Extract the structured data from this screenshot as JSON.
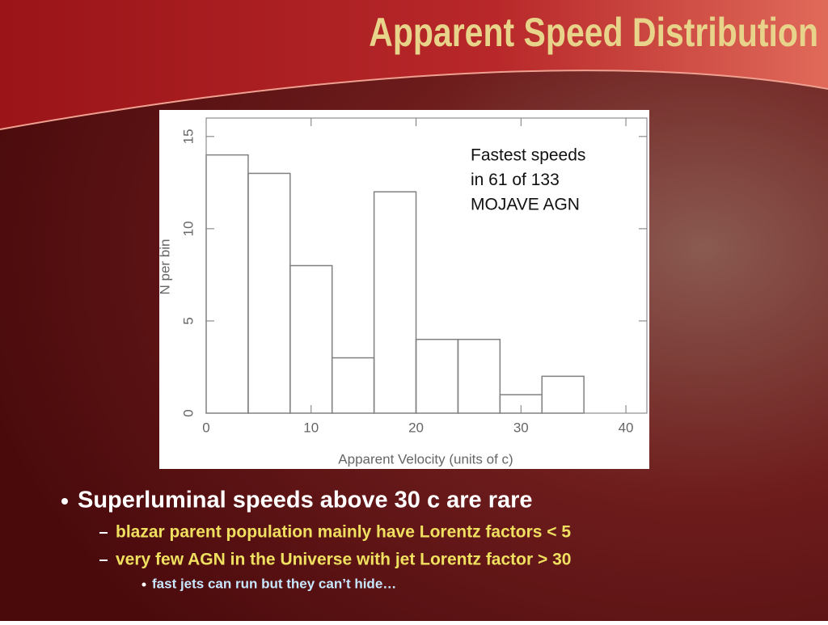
{
  "slide": {
    "title": "Apparent Speed Distribution",
    "bullets": [
      {
        "level": 1,
        "text": "Superluminal speeds above 30 c are rare"
      },
      {
        "level": 2,
        "text": "blazar parent population mainly have Lorentz factors < 5"
      },
      {
        "level": 2,
        "text": "very few AGN in the Universe with jet Lorentz factor > 30"
      },
      {
        "level": 3,
        "text": "fast jets can run but they can’t hide…"
      }
    ]
  },
  "chart_data": {
    "type": "histogram",
    "x_label": "Apparent Velocity (units of c)",
    "y_label": "N per bin",
    "annotation": [
      "Fastest speeds",
      "in 61 of 133",
      "MOJAVE AGN"
    ],
    "bins": [
      0,
      4,
      8,
      12,
      16,
      20,
      24,
      28,
      32,
      36
    ],
    "values": [
      14,
      13,
      8,
      3,
      12,
      4,
      4,
      1,
      2
    ],
    "color": "#808080",
    "xlim": [
      0,
      42
    ],
    "ylim": [
      0,
      16
    ],
    "xticks": [
      0,
      10,
      20,
      30,
      40
    ],
    "yticks": [
      0,
      5,
      10,
      15
    ]
  }
}
